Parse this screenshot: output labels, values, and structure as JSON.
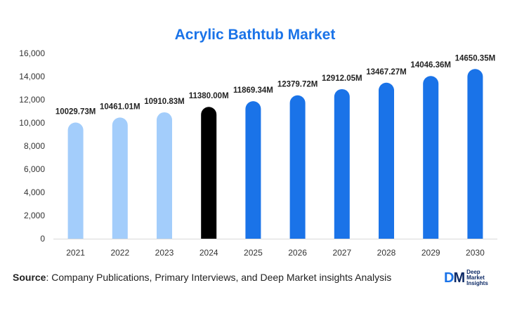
{
  "chart_data": {
    "type": "bar",
    "title": "Acrylic Bathtub Market",
    "categories": [
      "2021",
      "2022",
      "2023",
      "2024",
      "2025",
      "2026",
      "2027",
      "2028",
      "2029",
      "2030"
    ],
    "values": [
      10029.73,
      10461.01,
      10910.83,
      11380.0,
      11869.34,
      12379.72,
      12912.05,
      13467.27,
      14046.36,
      14650.35
    ],
    "data_labels": [
      "10029.73M",
      "10461.01M",
      "10910.83M",
      "11380.00M",
      "11869.34M",
      "12379.72M",
      "12912.05M",
      "13467.27M",
      "14046.36M",
      "14650.35M"
    ],
    "ylim": [
      0,
      16000
    ],
    "yticks": [
      0,
      2000,
      4000,
      6000,
      8000,
      10000,
      12000,
      14000,
      16000
    ],
    "ytick_labels": [
      "0",
      "2,000",
      "4,000",
      "6,000",
      "8,000",
      "10,000",
      "12,000",
      "14,000",
      "16,000"
    ],
    "xlabel": "",
    "ylabel": "",
    "grid": false,
    "bar_colors": [
      "#a3cdfb",
      "#a3cdfb",
      "#a3cdfb",
      "#000000",
      "#1a73e8",
      "#1a73e8",
      "#1a73e8",
      "#1a73e8",
      "#1a73e8",
      "#1a73e8"
    ]
  },
  "source": {
    "label": "Source",
    "text": ": Company Publications, Primary Interviews, and Deep Market insights Analysis"
  },
  "logo": {
    "mark_d": "D",
    "mark_m": "M",
    "line1": "Deep",
    "line2": "Market",
    "line3": "Insights"
  }
}
